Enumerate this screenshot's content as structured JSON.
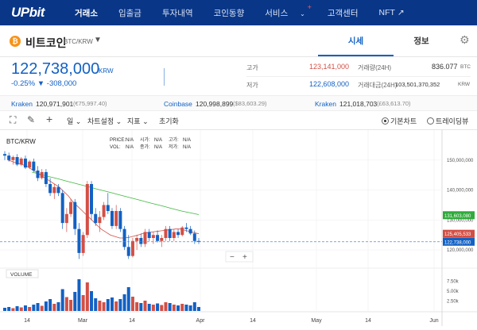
{
  "nav": {
    "logo": "UPbit",
    "items": [
      {
        "label": "거래소",
        "active": true
      },
      {
        "label": "입출금"
      },
      {
        "label": "투자내역"
      },
      {
        "label": "코인동향"
      },
      {
        "label": "서비스",
        "badge": "+"
      },
      {
        "label": "고객센터"
      },
      {
        "label": "NFT"
      }
    ],
    "service_dropdown_icon": "chevron-down-icon",
    "nft_arrow_icon": "external-arrow-icon"
  },
  "coin": {
    "name": "비트코인",
    "pair": "BTC/KRW",
    "icon": "bitcoin-icon"
  },
  "tabs": {
    "quote": "시세",
    "info": "정보"
  },
  "price": {
    "current": "122,738,000",
    "unit": "KRW",
    "change_pct": "-0.25%",
    "change_arrow": "▼",
    "change_abs": "-308,000"
  },
  "stats": {
    "high_label": "고가",
    "high_value": "123,141,000",
    "low_label": "저가",
    "low_value": "122,608,000",
    "volume_label": "거래량(24H)",
    "volume_value": "836.077",
    "volume_unit": "BTC",
    "amount_label": "거래대금(24H)",
    "amount_value": "103,501,370,352",
    "amount_unit": "KRW"
  },
  "exchanges": [
    {
      "name": "Kraken",
      "price": "120,971,901",
      "sub": "(€75,997.40)"
    },
    {
      "name": "Coinbase",
      "price": "120,998,899",
      "sub": "($83,603.29)"
    },
    {
      "name": "Kraken",
      "price": "121,018,703",
      "sub": "(£63,613.70)"
    }
  ],
  "toolbar": {
    "interval": "일",
    "chart_settings": "차트설정",
    "indicator": "지표",
    "reset": "초기화",
    "basic_chart": "기본차트",
    "trading_view": "트레이딩뷰"
  },
  "chart_data": {
    "type": "candlestick",
    "title": "BTC/KRW",
    "ohlc_labels": {
      "price": "PRICE:",
      "open": "시가:",
      "high": "고가:",
      "close": "종가:",
      "vol": "VOL:",
      "low": "저가:",
      "na": "N/A"
    },
    "y_ticks": [
      "150,000,000",
      "140,000,000",
      "130,000,000",
      "120,000,000"
    ],
    "y_range": [
      115000000,
      160000000
    ],
    "volume_ticks": [
      "7.50k",
      "5.00k",
      "2.50k"
    ],
    "x_ticks": [
      "14",
      "Mar",
      "14",
      "Apr",
      "14",
      "May",
      "14",
      "Jun"
    ],
    "volume_label": "VOLUME",
    "price_tags": [
      {
        "label": "131,603,080",
        "value": 131603080,
        "color": "#2eab3a"
      },
      {
        "label": "125,405,533",
        "value": 125405533,
        "color": "#d24f45"
      },
      {
        "label": "122,738,000",
        "value": 122738000,
        "color": "#1261c4"
      }
    ],
    "zoom_minus": "−",
    "zoom_plus": "+",
    "candles": [
      {
        "o": 152.0,
        "h": 153.0,
        "l": 150.0,
        "c": 151.5
      },
      {
        "o": 151.5,
        "h": 152.5,
        "l": 149.5,
        "c": 150.0
      },
      {
        "o": 150.0,
        "h": 151.5,
        "l": 148.5,
        "c": 151.0
      },
      {
        "o": 151.0,
        "h": 152.0,
        "l": 148.0,
        "c": 148.5
      },
      {
        "o": 148.5,
        "h": 151.0,
        "l": 148.0,
        "c": 150.5
      },
      {
        "o": 150.5,
        "h": 151.5,
        "l": 147.0,
        "c": 147.5
      },
      {
        "o": 147.5,
        "h": 150.0,
        "l": 147.0,
        "c": 149.5
      },
      {
        "o": 149.5,
        "h": 150.5,
        "l": 146.0,
        "c": 146.5
      },
      {
        "o": 146.5,
        "h": 148.0,
        "l": 143.0,
        "c": 144.0
      },
      {
        "o": 144.0,
        "h": 147.0,
        "l": 143.5,
        "c": 146.0
      },
      {
        "o": 146.0,
        "h": 147.0,
        "l": 141.0,
        "c": 142.0
      },
      {
        "o": 142.0,
        "h": 144.0,
        "l": 138.0,
        "c": 139.0
      },
      {
        "o": 139.0,
        "h": 142.0,
        "l": 137.0,
        "c": 141.0
      },
      {
        "o": 141.0,
        "h": 142.0,
        "l": 138.0,
        "c": 139.0
      },
      {
        "o": 139.0,
        "h": 140.0,
        "l": 127.0,
        "c": 129.0
      },
      {
        "o": 129.0,
        "h": 134.0,
        "l": 126.0,
        "c": 132.0
      },
      {
        "o": 132.0,
        "h": 137.0,
        "l": 131.0,
        "c": 136.0
      },
      {
        "o": 136.0,
        "h": 137.0,
        "l": 125.0,
        "c": 127.0
      },
      {
        "o": 127.0,
        "h": 129.0,
        "l": 117.0,
        "c": 119.0
      },
      {
        "o": 119.0,
        "h": 126.0,
        "l": 118.0,
        "c": 125.0
      },
      {
        "o": 125.0,
        "h": 143.0,
        "l": 124.0,
        "c": 142.0
      },
      {
        "o": 142.0,
        "h": 143.0,
        "l": 130.0,
        "c": 132.0
      },
      {
        "o": 132.0,
        "h": 134.0,
        "l": 128.0,
        "c": 129.0
      },
      {
        "o": 129.0,
        "h": 133.0,
        "l": 126.0,
        "c": 131.0
      },
      {
        "o": 131.0,
        "h": 136.0,
        "l": 130.0,
        "c": 135.0
      },
      {
        "o": 135.0,
        "h": 139.0,
        "l": 132.0,
        "c": 133.0
      },
      {
        "o": 133.0,
        "h": 134.0,
        "l": 127.0,
        "c": 128.0
      },
      {
        "o": 128.0,
        "h": 135.0,
        "l": 127.0,
        "c": 133.0
      },
      {
        "o": 133.0,
        "h": 134.0,
        "l": 126.0,
        "c": 127.0
      },
      {
        "o": 127.0,
        "h": 128.0,
        "l": 120.0,
        "c": 121.0
      },
      {
        "o": 121.0,
        "h": 125.0,
        "l": 117.0,
        "c": 118.0
      },
      {
        "o": 118.0,
        "h": 124.0,
        "l": 117.5,
        "c": 123.0
      },
      {
        "o": 123.0,
        "h": 125.0,
        "l": 120.0,
        "c": 124.0
      },
      {
        "o": 124.0,
        "h": 125.5,
        "l": 121.0,
        "c": 122.0
      },
      {
        "o": 122.0,
        "h": 127.0,
        "l": 121.0,
        "c": 126.0
      },
      {
        "o": 126.0,
        "h": 127.0,
        "l": 123.0,
        "c": 124.0
      },
      {
        "o": 124.0,
        "h": 126.0,
        "l": 122.0,
        "c": 125.0
      },
      {
        "o": 125.0,
        "h": 126.5,
        "l": 122.5,
        "c": 123.0
      },
      {
        "o": 123.0,
        "h": 125.0,
        "l": 121.0,
        "c": 124.0
      },
      {
        "o": 124.0,
        "h": 128.0,
        "l": 123.0,
        "c": 127.0
      },
      {
        "o": 127.0,
        "h": 128.0,
        "l": 123.0,
        "c": 124.0
      },
      {
        "o": 124.0,
        "h": 127.0,
        "l": 123.0,
        "c": 126.0
      },
      {
        "o": 126.0,
        "h": 127.0,
        "l": 124.0,
        "c": 125.0
      },
      {
        "o": 125.0,
        "h": 128.0,
        "l": 124.5,
        "c": 127.5
      },
      {
        "o": 127.5,
        "h": 129.0,
        "l": 126.0,
        "c": 127.0
      },
      {
        "o": 127.0,
        "h": 128.0,
        "l": 125.0,
        "c": 125.5
      },
      {
        "o": 125.5,
        "h": 126.5,
        "l": 122.0,
        "c": 123.0
      },
      {
        "o": 123.0,
        "h": 124.0,
        "l": 122.0,
        "c": 122.7
      }
    ],
    "ma_long": [
      146,
      145.5,
      145,
      144.5,
      144,
      143.5,
      143,
      142.5,
      142,
      141.5,
      141,
      140.5,
      140,
      139.5,
      139,
      138.5,
      138,
      137.5,
      137,
      136.5,
      136,
      135.5,
      135,
      134.5,
      134,
      133.5,
      133,
      132.6,
      132.2,
      131.8
    ],
    "ma_short": [
      150,
      149.5,
      149,
      148.5,
      148,
      147,
      146,
      145,
      144,
      143,
      142,
      141,
      139.5,
      138,
      136,
      134.5,
      133,
      131.5,
      130,
      128.5,
      127,
      126,
      125,
      124.5,
      124,
      124,
      124.2,
      124.6,
      125,
      125.5,
      125.8,
      126,
      126.2,
      126.4,
      126.6,
      126.8,
      127,
      127,
      126.6,
      126.2,
      125.8,
      125.4
    ],
    "volumes": [
      0.8,
      1.0,
      0.7,
      1.2,
      0.9,
      1.4,
      1.0,
      1.6,
      2.0,
      1.3,
      2.4,
      3.0,
      1.8,
      2.2,
      5.5,
      3.5,
      2.8,
      4.8,
      8.0,
      4.0,
      7.2,
      5.0,
      3.2,
      2.6,
      2.2,
      3.0,
      3.4,
      2.4,
      3.0,
      4.2,
      6.0,
      3.6,
      2.2,
      2.0,
      2.6,
      1.8,
      1.6,
      1.9,
      1.5,
      2.2,
      2.0,
      1.6,
      1.4,
      1.8,
      1.6,
      1.4,
      2.2,
      1.0
    ]
  }
}
